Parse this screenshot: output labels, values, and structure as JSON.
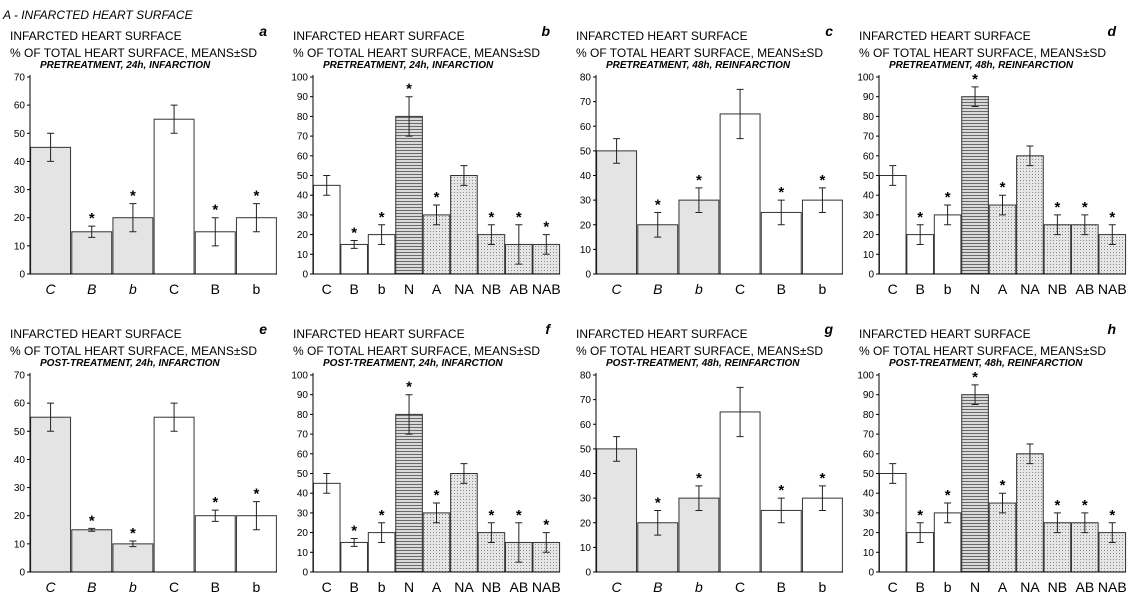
{
  "figure_title": "A - INFARCTED HEART SURFACE",
  "chart_data": [
    {
      "type": "bar",
      "panel": "a",
      "title": "INFARCTED HEART SURFACE",
      "subtitle": "% OF TOTAL HEART SURFACE, MEANS±SD",
      "condition": "PRETREATMENT, 24h, INFARCTION",
      "categories": [
        "C",
        "B",
        "b",
        "C",
        "B",
        "b"
      ],
      "italic_categories": [
        0,
        1,
        2
      ],
      "values": [
        45,
        15,
        20,
        55,
        15,
        20
      ],
      "errors": [
        5,
        2,
        5,
        5,
        5,
        5
      ],
      "significant": [
        false,
        true,
        true,
        false,
        true,
        true
      ],
      "fills": [
        "gray",
        "gray",
        "gray",
        "white",
        "white",
        "white"
      ],
      "ylim": [
        0,
        70
      ],
      "ytick_step": 10
    },
    {
      "type": "bar",
      "panel": "b",
      "title": "INFARCTED HEART SURFACE",
      "subtitle": "% OF TOTAL HEART SURFACE, MEANS±SD",
      "condition": "PRETREATMENT, 24h, INFARCTION",
      "categories": [
        "C",
        "B",
        "b",
        "N",
        "A",
        "NA",
        "NB",
        "AB",
        "NAB"
      ],
      "italic_categories": [],
      "values": [
        45,
        15,
        20,
        80,
        30,
        50,
        20,
        15,
        15
      ],
      "errors": [
        5,
        2,
        5,
        10,
        5,
        5,
        5,
        10,
        5
      ],
      "significant": [
        false,
        true,
        true,
        true,
        true,
        false,
        true,
        true,
        true
      ],
      "fills": [
        "white",
        "white",
        "white",
        "hstripe",
        "dots",
        "dots",
        "dots",
        "dots",
        "dots"
      ],
      "ylim": [
        0,
        100
      ],
      "ytick_step": 10
    },
    {
      "type": "bar",
      "panel": "c",
      "title": "INFARCTED HEART SURFACE",
      "subtitle": "% OF TOTAL HEART SURFACE, MEANS±SD",
      "condition": "PRETREATMENT, 48h, REINFARCTION",
      "categories": [
        "C",
        "B",
        "b",
        "C",
        "B",
        "b"
      ],
      "italic_categories": [
        0,
        1,
        2
      ],
      "values": [
        50,
        20,
        30,
        65,
        25,
        30
      ],
      "errors": [
        5,
        5,
        5,
        10,
        5,
        5
      ],
      "significant": [
        false,
        true,
        true,
        false,
        true,
        true
      ],
      "fills": [
        "gray",
        "gray",
        "gray",
        "white",
        "white",
        "white"
      ],
      "ylim": [
        0,
        80
      ],
      "ytick_step": 10
    },
    {
      "type": "bar",
      "panel": "d",
      "title": "INFARCTED HEART SURFACE",
      "subtitle": "% OF TOTAL HEART SURFACE, MEANS±SD",
      "condition": "PRETREATMENT, 48h, REINFARCTION",
      "categories": [
        "C",
        "B",
        "b",
        "N",
        "A",
        "NA",
        "NB",
        "AB",
        "NAB"
      ],
      "italic_categories": [],
      "values": [
        50,
        20,
        30,
        90,
        35,
        60,
        25,
        25,
        20
      ],
      "errors": [
        5,
        5,
        5,
        5,
        5,
        5,
        5,
        5,
        5
      ],
      "significant": [
        false,
        true,
        true,
        true,
        true,
        false,
        true,
        true,
        true
      ],
      "fills": [
        "white",
        "white",
        "white",
        "hstripe",
        "dots",
        "dots",
        "dots",
        "dots",
        "dots"
      ],
      "ylim": [
        0,
        100
      ],
      "ytick_step": 10
    },
    {
      "type": "bar",
      "panel": "e",
      "title": "INFARCTED HEART SURFACE",
      "subtitle": "% OF TOTAL HEART SURFACE, MEANS±SD",
      "condition": "POST-TREATMENT, 24h, INFARCTION",
      "categories": [
        "C",
        "B",
        "b",
        "C",
        "B",
        "b"
      ],
      "italic_categories": [
        0,
        1,
        2
      ],
      "values": [
        55,
        15,
        10,
        55,
        20,
        20
      ],
      "errors": [
        5,
        0.5,
        1,
        5,
        2,
        5
      ],
      "significant": [
        false,
        true,
        true,
        false,
        true,
        true
      ],
      "fills": [
        "gray",
        "gray",
        "gray",
        "white",
        "white",
        "white"
      ],
      "ylim": [
        0,
        70
      ],
      "ytick_step": 10
    },
    {
      "type": "bar",
      "panel": "f",
      "title": "INFARCTED HEART SURFACE",
      "subtitle": "% OF TOTAL HEART SURFACE, MEANS±SD",
      "condition": "POST-TREATMENT, 24h, INFARCTION",
      "categories": [
        "C",
        "B",
        "b",
        "N",
        "A",
        "NA",
        "NB",
        "AB",
        "NAB"
      ],
      "italic_categories": [],
      "values": [
        45,
        15,
        20,
        80,
        30,
        50,
        20,
        15,
        15
      ],
      "errors": [
        5,
        2,
        5,
        10,
        5,
        5,
        5,
        10,
        5
      ],
      "significant": [
        false,
        true,
        true,
        true,
        true,
        false,
        true,
        true,
        true
      ],
      "fills": [
        "white",
        "white",
        "white",
        "hstripe",
        "dots",
        "dots",
        "dots",
        "dots",
        "dots"
      ],
      "ylim": [
        0,
        100
      ],
      "ytick_step": 10
    },
    {
      "type": "bar",
      "panel": "g",
      "title": "INFARCTED HEART SURFACE",
      "subtitle": "% OF TOTAL HEART SURFACE, MEANS±SD",
      "condition": "POST-TREATMENT, 48h, REINFARCTION",
      "categories": [
        "C",
        "B",
        "b",
        "C",
        "B",
        "b"
      ],
      "italic_categories": [
        0,
        1,
        2
      ],
      "values": [
        50,
        20,
        30,
        65,
        25,
        30
      ],
      "errors": [
        5,
        5,
        5,
        10,
        5,
        5
      ],
      "significant": [
        false,
        true,
        true,
        false,
        true,
        true
      ],
      "fills": [
        "gray",
        "gray",
        "gray",
        "white",
        "white",
        "white"
      ],
      "ylim": [
        0,
        80
      ],
      "ytick_step": 10
    },
    {
      "type": "bar",
      "panel": "h",
      "title": "INFARCTED HEART SURFACE",
      "subtitle": "% OF TOTAL HEART SURFACE, MEANS±SD",
      "condition": "POST-TREATMENT, 48h, REINFARCTION",
      "categories": [
        "C",
        "B",
        "b",
        "N",
        "A",
        "NA",
        "NB",
        "AB",
        "NAB"
      ],
      "italic_categories": [],
      "values": [
        50,
        20,
        30,
        90,
        35,
        60,
        25,
        25,
        20
      ],
      "errors": [
        5,
        5,
        5,
        5,
        5,
        5,
        5,
        5,
        5
      ],
      "significant": [
        false,
        true,
        true,
        true,
        true,
        false,
        true,
        true,
        true
      ],
      "fills": [
        "white",
        "white",
        "white",
        "hstripe",
        "dots",
        "dots",
        "dots",
        "dots",
        "dots"
      ],
      "ylim": [
        0,
        100
      ],
      "ytick_step": 10
    }
  ],
  "colors": {
    "gray_fill": "#e4e4e4",
    "bar_stroke": "#333333",
    "axis": "#000000"
  }
}
